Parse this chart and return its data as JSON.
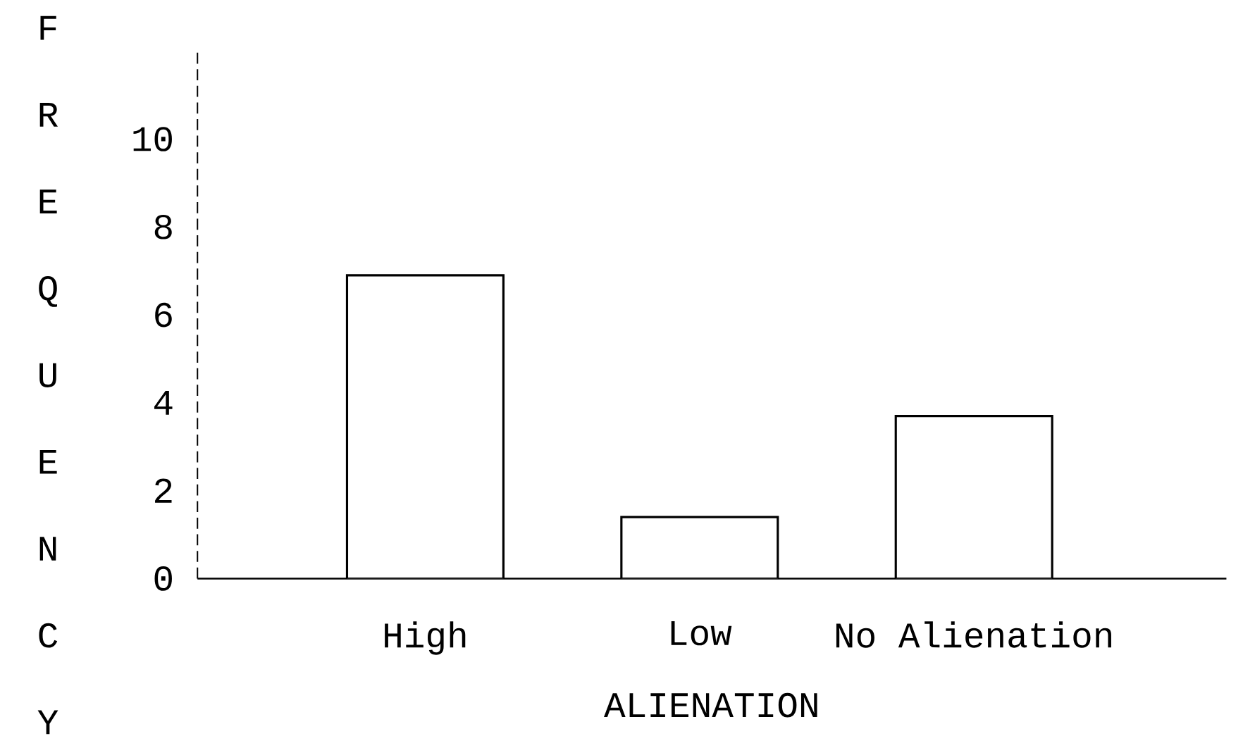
{
  "chart_data": {
    "type": "bar",
    "xlabel": "ALIENATION",
    "ylabel": "FREQUENCY",
    "categories": [
      "High",
      "Low",
      "No Alienation"
    ],
    "values": [
      6.9,
      1.4,
      3.7
    ],
    "color": "#ffffff",
    "ylim": [
      0,
      12
    ],
    "yticks": [
      0,
      2,
      4,
      6,
      8,
      10
    ]
  }
}
